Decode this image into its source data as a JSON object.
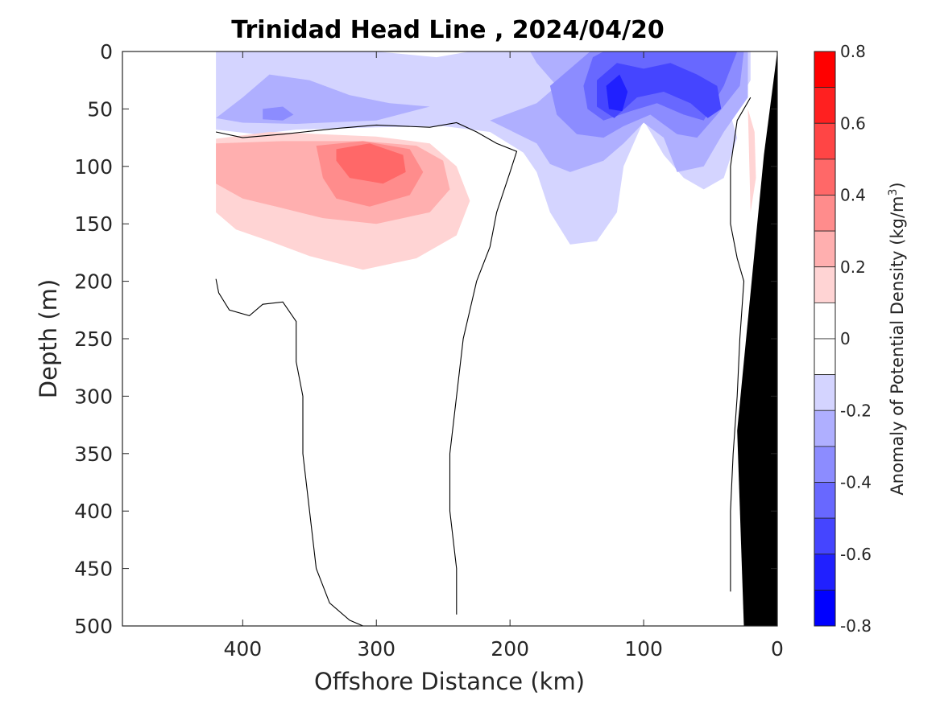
{
  "chart_data": {
    "type": "heatmap",
    "subtype": "filled-contour section",
    "title": "Trinidad Head Line , 2024/04/20",
    "xlabel": "Offshore Distance (km)",
    "ylabel": "Depth (m)",
    "xlim": [
      490,
      0
    ],
    "ylim": [
      0,
      500
    ],
    "x_reversed": true,
    "y_reversed": true,
    "x_ticks": [
      400,
      300,
      200,
      100,
      0
    ],
    "x_tick_labels": [
      "400",
      "300",
      "200",
      "100",
      "0"
    ],
    "y_ticks": [
      0,
      50,
      100,
      150,
      200,
      250,
      300,
      350,
      400,
      450,
      500
    ],
    "y_tick_labels": [
      "0",
      "50",
      "100",
      "150",
      "200",
      "250",
      "300",
      "350",
      "400",
      "450",
      "500"
    ],
    "colorbar": {
      "label": "Anomaly of Potential Density (kg/m",
      "label_superscript": "3",
      "label_suffix": ")",
      "range": [
        -0.8,
        0.8
      ],
      "tick_values": [
        0.8,
        0.6,
        0.4,
        0.2,
        0,
        -0.2,
        -0.4,
        -0.6,
        -0.8
      ],
      "tick_labels": [
        "0.8",
        "0.6",
        "0.4",
        "0.2",
        "0",
        "-0.2",
        "-0.4",
        "-0.6",
        "-0.8"
      ],
      "levels": [
        {
          "from": 0.7,
          "to": 0.8,
          "color": "#ff0000"
        },
        {
          "from": 0.6,
          "to": 0.7,
          "color": "#ff2020"
        },
        {
          "from": 0.5,
          "to": 0.6,
          "color": "#ff4545"
        },
        {
          "from": 0.4,
          "to": 0.5,
          "color": "#ff6868"
        },
        {
          "from": 0.3,
          "to": 0.4,
          "color": "#ff8c8c"
        },
        {
          "from": 0.2,
          "to": 0.3,
          "color": "#ffafaf"
        },
        {
          "from": 0.1,
          "to": 0.2,
          "color": "#ffd4d4"
        },
        {
          "from": 0.0,
          "to": 0.1,
          "color": "#ffffff"
        },
        {
          "from": -0.1,
          "to": 0.0,
          "color": "#ffffff"
        },
        {
          "from": -0.2,
          "to": -0.1,
          "color": "#d4d4ff"
        },
        {
          "from": -0.3,
          "to": -0.2,
          "color": "#afafff"
        },
        {
          "from": -0.4,
          "to": -0.3,
          "color": "#8c8cff"
        },
        {
          "from": -0.5,
          "to": -0.4,
          "color": "#6868ff"
        },
        {
          "from": -0.6,
          "to": -0.5,
          "color": "#4545ff"
        },
        {
          "from": -0.7,
          "to": -0.6,
          "color": "#2020ff"
        },
        {
          "from": -0.8,
          "to": -0.7,
          "color": "#0000ff"
        }
      ]
    },
    "data_coverage_km": [
      420,
      0
    ],
    "bathymetry": {
      "description": "seafloor (black) near shore",
      "color": "#000000",
      "points": [
        [
          0,
          0
        ],
        [
          0,
          500
        ],
        [
          25,
          500
        ],
        [
          30,
          330
        ],
        [
          10,
          90
        ],
        [
          0,
          0
        ]
      ]
    },
    "regions": [
      {
        "name": "negative anomaly upper layer",
        "level_min": -0.2,
        "level_max": -0.1,
        "color": "#d4d4ff",
        "points": [
          [
            420,
            0
          ],
          [
            350,
            0
          ],
          [
            300,
            0
          ],
          [
            255,
            5
          ],
          [
            230,
            0
          ],
          [
            200,
            0
          ],
          [
            120,
            0
          ],
          [
            60,
            0
          ],
          [
            20,
            0
          ],
          [
            20,
            25
          ],
          [
            35,
            55
          ],
          [
            30,
            75
          ],
          [
            40,
            110
          ],
          [
            55,
            120
          ],
          [
            70,
            110
          ],
          [
            85,
            90
          ],
          [
            100,
            60
          ],
          [
            115,
            100
          ],
          [
            120,
            140
          ],
          [
            135,
            165
          ],
          [
            155,
            168
          ],
          [
            170,
            140
          ],
          [
            180,
            105
          ],
          [
            190,
            88
          ],
          [
            215,
            70
          ],
          [
            250,
            65
          ],
          [
            300,
            66
          ],
          [
            360,
            68
          ],
          [
            390,
            72
          ],
          [
            420,
            68
          ],
          [
            420,
            0
          ]
        ]
      },
      {
        "name": "negative anomaly core west",
        "level_min": -0.3,
        "level_max": -0.2,
        "color": "#afafff",
        "points": [
          [
            420,
            58
          ],
          [
            400,
            40
          ],
          [
            380,
            20
          ],
          [
            350,
            25
          ],
          [
            320,
            38
          ],
          [
            290,
            45
          ],
          [
            260,
            48
          ],
          [
            300,
            60
          ],
          [
            360,
            63
          ],
          [
            400,
            62
          ],
          [
            420,
            58
          ]
        ]
      },
      {
        "name": "negative anomaly core east",
        "level_min": -0.3,
        "level_max": -0.2,
        "color": "#afafff",
        "points": [
          [
            215,
            60
          ],
          [
            180,
            45
          ],
          [
            165,
            30
          ],
          [
            180,
            10
          ],
          [
            185,
            0
          ],
          [
            22,
            0
          ],
          [
            22,
            40
          ],
          [
            40,
            70
          ],
          [
            55,
            100
          ],
          [
            75,
            105
          ],
          [
            85,
            75
          ],
          [
            100,
            62
          ],
          [
            115,
            80
          ],
          [
            130,
            95
          ],
          [
            155,
            105
          ],
          [
            170,
            98
          ],
          [
            180,
            80
          ],
          [
            215,
            60
          ]
        ]
      },
      {
        "name": "negative anomaly -0.4",
        "level_min": -0.4,
        "level_max": -0.3,
        "color": "#8c8cff",
        "points": [
          [
            170,
            30
          ],
          [
            150,
            10
          ],
          [
            140,
            0
          ],
          [
            25,
            0
          ],
          [
            28,
            30
          ],
          [
            45,
            55
          ],
          [
            60,
            75
          ],
          [
            75,
            72
          ],
          [
            95,
            55
          ],
          [
            115,
            65
          ],
          [
            130,
            75
          ],
          [
            150,
            72
          ],
          [
            165,
            55
          ],
          [
            170,
            30
          ]
        ]
      },
      {
        "name": "negative anomaly west patch",
        "level_min": -0.4,
        "level_max": -0.3,
        "color": "#8c8cff",
        "points": [
          [
            385,
            50
          ],
          [
            370,
            48
          ],
          [
            362,
            55
          ],
          [
            370,
            60
          ],
          [
            385,
            59
          ],
          [
            385,
            50
          ]
        ]
      },
      {
        "name": "negative anomaly -0.5",
        "level_min": -0.5,
        "level_max": -0.4,
        "color": "#6868ff",
        "points": [
          [
            145,
            30
          ],
          [
            138,
            5
          ],
          [
            130,
            0
          ],
          [
            30,
            0
          ],
          [
            40,
            30
          ],
          [
            55,
            60
          ],
          [
            70,
            55
          ],
          [
            90,
            45
          ],
          [
            110,
            52
          ],
          [
            130,
            60
          ],
          [
            142,
            50
          ],
          [
            145,
            30
          ]
        ]
      },
      {
        "name": "negative anomaly -0.6",
        "level_min": -0.6,
        "level_max": -0.5,
        "color": "#4545ff",
        "points": [
          [
            135,
            25
          ],
          [
            120,
            10
          ],
          [
            100,
            15
          ],
          [
            80,
            10
          ],
          [
            60,
            20
          ],
          [
            45,
            30
          ],
          [
            42,
            50
          ],
          [
            52,
            58
          ],
          [
            65,
            45
          ],
          [
            85,
            35
          ],
          [
            105,
            40
          ],
          [
            122,
            58
          ],
          [
            135,
            48
          ],
          [
            135,
            25
          ]
        ]
      },
      {
        "name": "negative anomaly -0.7",
        "level_min": -0.7,
        "level_max": -0.6,
        "color": "#2020ff",
        "points": [
          [
            128,
            30
          ],
          [
            118,
            20
          ],
          [
            112,
            35
          ],
          [
            116,
            52
          ],
          [
            126,
            50
          ],
          [
            128,
            30
          ]
        ]
      },
      {
        "name": "positive anomaly 0.2",
        "level_min": 0.1,
        "level_max": 0.2,
        "color": "#ffd4d4",
        "points": [
          [
            420,
            76
          ],
          [
            380,
            70
          ],
          [
            300,
            74
          ],
          [
            260,
            80
          ],
          [
            240,
            100
          ],
          [
            230,
            130
          ],
          [
            240,
            160
          ],
          [
            270,
            180
          ],
          [
            310,
            190
          ],
          [
            350,
            178
          ],
          [
            380,
            165
          ],
          [
            405,
            155
          ],
          [
            420,
            140
          ],
          [
            420,
            76
          ]
        ]
      },
      {
        "name": "positive anomaly 0.3",
        "level_min": 0.2,
        "level_max": 0.3,
        "color": "#ffafaf",
        "points": [
          [
            420,
            80
          ],
          [
            370,
            78
          ],
          [
            310,
            78
          ],
          [
            270,
            82
          ],
          [
            250,
            95
          ],
          [
            245,
            120
          ],
          [
            260,
            140
          ],
          [
            300,
            150
          ],
          [
            340,
            145
          ],
          [
            375,
            135
          ],
          [
            400,
            128
          ],
          [
            420,
            115
          ],
          [
            420,
            80
          ]
        ]
      },
      {
        "name": "positive anomaly 0.4",
        "level_min": 0.3,
        "level_max": 0.4,
        "color": "#ff8c8c",
        "points": [
          [
            345,
            82
          ],
          [
            310,
            78
          ],
          [
            275,
            85
          ],
          [
            265,
            105
          ],
          [
            275,
            125
          ],
          [
            305,
            135
          ],
          [
            330,
            128
          ],
          [
            340,
            110
          ],
          [
            345,
            82
          ]
        ]
      },
      {
        "name": "positive anomaly 0.5",
        "level_min": 0.4,
        "level_max": 0.5,
        "color": "#ff6868",
        "points": [
          [
            330,
            85
          ],
          [
            305,
            80
          ],
          [
            280,
            90
          ],
          [
            278,
            105
          ],
          [
            295,
            115
          ],
          [
            320,
            110
          ],
          [
            330,
            95
          ],
          [
            330,
            85
          ]
        ]
      },
      {
        "name": "positive anomaly nearshore",
        "level_min": 0.1,
        "level_max": 0.2,
        "color": "#ffd4d4",
        "points": [
          [
            22,
            50
          ],
          [
            17,
            70
          ],
          [
            16,
            110
          ],
          [
            20,
            140
          ],
          [
            22,
            50
          ]
        ]
      }
    ],
    "zero_contours": [
      [
        [
          420,
          70
        ],
        [
          400,
          75
        ],
        [
          370,
          72
        ],
        [
          330,
          67
        ],
        [
          300,
          64
        ],
        [
          260,
          66
        ],
        [
          240,
          62
        ],
        [
          225,
          70
        ],
        [
          210,
          80
        ],
        [
          195,
          87
        ],
        [
          200,
          105
        ],
        [
          210,
          140
        ],
        [
          215,
          170
        ],
        [
          225,
          200
        ],
        [
          235,
          250
        ],
        [
          240,
          300
        ],
        [
          245,
          350
        ],
        [
          245,
          400
        ],
        [
          240,
          450
        ],
        [
          240,
          490
        ]
      ],
      [
        [
          420,
          198
        ],
        [
          418,
          210
        ],
        [
          410,
          225
        ],
        [
          395,
          230
        ],
        [
          385,
          220
        ],
        [
          370,
          218
        ],
        [
          360,
          235
        ],
        [
          360,
          270
        ],
        [
          355,
          300
        ],
        [
          355,
          350
        ],
        [
          350,
          400
        ],
        [
          345,
          450
        ],
        [
          335,
          480
        ],
        [
          320,
          495
        ],
        [
          310,
          500
        ]
      ],
      [
        [
          20,
          40
        ],
        [
          30,
          60
        ],
        [
          35,
          100
        ],
        [
          35,
          150
        ],
        [
          30,
          180
        ],
        [
          25,
          200
        ],
        [
          28,
          250
        ],
        [
          30,
          300
        ],
        [
          33,
          350
        ],
        [
          35,
          400
        ],
        [
          35,
          470
        ]
      ]
    ]
  }
}
